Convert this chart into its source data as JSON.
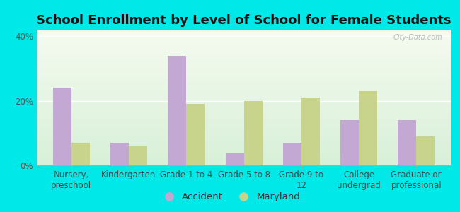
{
  "title": "School Enrollment by Level of School for Female Students",
  "categories": [
    "Nursery,\npreschool",
    "Kindergarten",
    "Grade 1 to 4",
    "Grade 5 to 8",
    "Grade 9 to\n12",
    "College\nundergrad",
    "Graduate or\nprofessional"
  ],
  "accident_values": [
    24,
    7,
    34,
    4,
    7,
    14,
    14
  ],
  "maryland_values": [
    7,
    6,
    19,
    20,
    21,
    23,
    9
  ],
  "accident_color": "#c4a8d4",
  "maryland_color": "#c8d48c",
  "background_color": "#00e8e8",
  "plot_bg_gradient_top": "#f5fbf0",
  "plot_bg_gradient_bottom": "#d8f0d8",
  "ylim": [
    0,
    42
  ],
  "yticks": [
    0,
    20,
    40
  ],
  "ytick_labels": [
    "0%",
    "20%",
    "40%"
  ],
  "bar_width": 0.32,
  "legend_labels": [
    "Accident",
    "Maryland"
  ],
  "title_fontsize": 13,
  "tick_fontsize": 8.5,
  "legend_fontsize": 9.5,
  "watermark_text": "City-Data.com"
}
